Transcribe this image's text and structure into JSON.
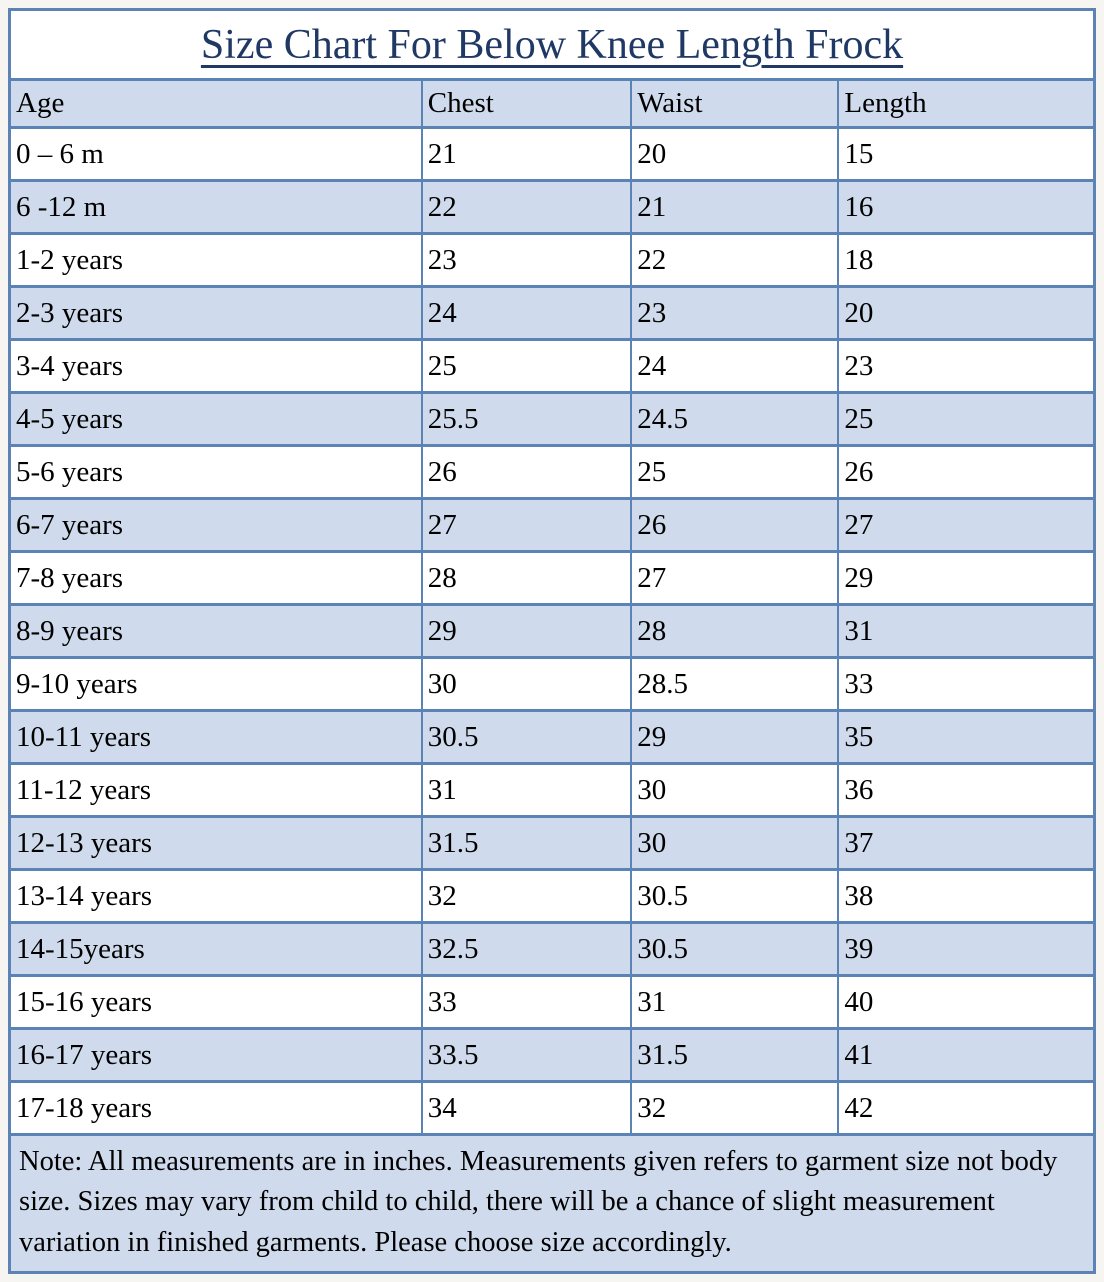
{
  "table": {
    "title": "Size Chart For Below Knee Length Frock",
    "columns": [
      "Age",
      "Chest",
      "Waist",
      "Length"
    ],
    "rows": [
      [
        "0 – 6 m",
        "21",
        "20",
        "15"
      ],
      [
        "6 -12 m",
        "22",
        "21",
        "16"
      ],
      [
        "1-2 years",
        "23",
        "22",
        "18"
      ],
      [
        "2-3 years",
        "24",
        "23",
        "20"
      ],
      [
        "3-4 years",
        "25",
        "24",
        "23"
      ],
      [
        "4-5 years",
        "25.5",
        "24.5",
        "25"
      ],
      [
        "5-6 years",
        "26",
        "25",
        "26"
      ],
      [
        "6-7 years",
        "27",
        "26",
        "27"
      ],
      [
        "7-8 years",
        "28",
        "27",
        "29"
      ],
      [
        "8-9 years",
        "29",
        "28",
        "31"
      ],
      [
        "9-10 years",
        "30",
        "28.5",
        "33"
      ],
      [
        "10-11 years",
        "30.5",
        "29",
        "35"
      ],
      [
        "11-12 years",
        "31",
        "30",
        "36"
      ],
      [
        "12-13 years",
        "31.5",
        "30",
        "37"
      ],
      [
        "13-14 years",
        "32",
        "30.5",
        "38"
      ],
      [
        "14-15years",
        "32.5",
        "30.5",
        "39"
      ],
      [
        "15-16 years",
        "33",
        "31",
        "40"
      ],
      [
        "16-17 years",
        "33.5",
        "31.5",
        "41"
      ],
      [
        "17-18 years",
        "34",
        "32",
        "42"
      ]
    ],
    "note": "Note: All measurements are in inches. Measurements given refers to garment size not body size. Sizes may vary from child to child, there will be a chance of slight measurement variation in finished garments. Please choose size accordingly.",
    "units": "inches"
  },
  "colors": {
    "border": "#5b83b5",
    "row_alt": "#cfdbec",
    "header_bg": "#cfdbec",
    "note_bg": "#cfdbec",
    "title_text": "#1f3864",
    "cell_text": "#000000",
    "page_bg": "#f7f5f1"
  }
}
